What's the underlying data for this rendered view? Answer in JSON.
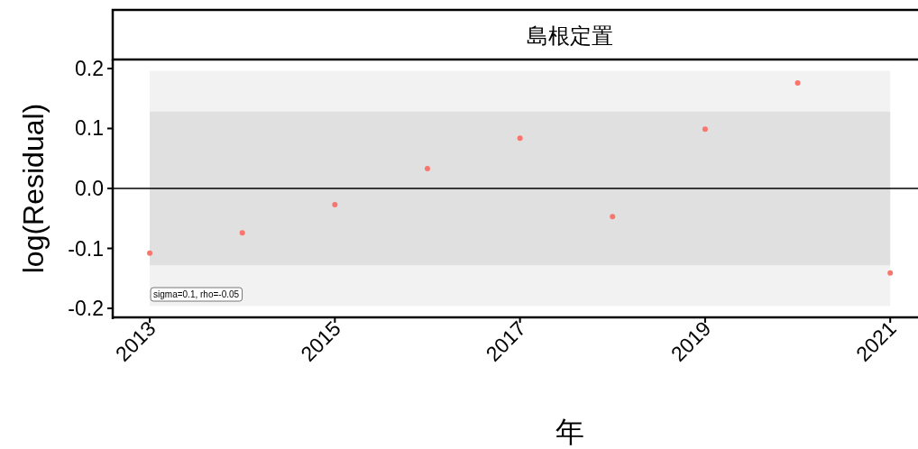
{
  "chart_data": {
    "type": "scatter",
    "title": "島根定置",
    "xlabel": "年",
    "ylabel": "log(Residual)",
    "x": [
      2013,
      2014,
      2015,
      2016,
      2017,
      2018,
      2019,
      2020,
      2021
    ],
    "series": [
      {
        "color": "#f8766d",
        "values": [
          -0.108,
          -0.074,
          -0.027,
          0.033,
          0.084,
          -0.047,
          0.099,
          0.176,
          -0.141
        ]
      }
    ],
    "xlim": [
      2012.6,
      2021.3
    ],
    "xticks": [
      2013,
      2015,
      2017,
      2019,
      2021
    ],
    "ylim": [
      -0.215,
      0.215
    ],
    "yticks": [
      {
        "value": -0.2,
        "label": "-0.2"
      },
      {
        "value": -0.1,
        "label": "-0.1"
      },
      {
        "value": 0,
        "label": "0.0"
      },
      0.1,
      0.2
    ],
    "bands": [
      {
        "axis": "y",
        "from": -0.196,
        "to": 0.196,
        "color": "#f2f2f2"
      },
      {
        "axis": "y",
        "from": -0.128,
        "to": 0.128,
        "color": "#e0e0e0"
      }
    ],
    "ref_lines": [
      {
        "axis": "y",
        "value": 0,
        "color": "#000000"
      }
    ],
    "annotations": [
      "sigma=0.1, rho=-0.05"
    ],
    "marker": "circle"
  }
}
